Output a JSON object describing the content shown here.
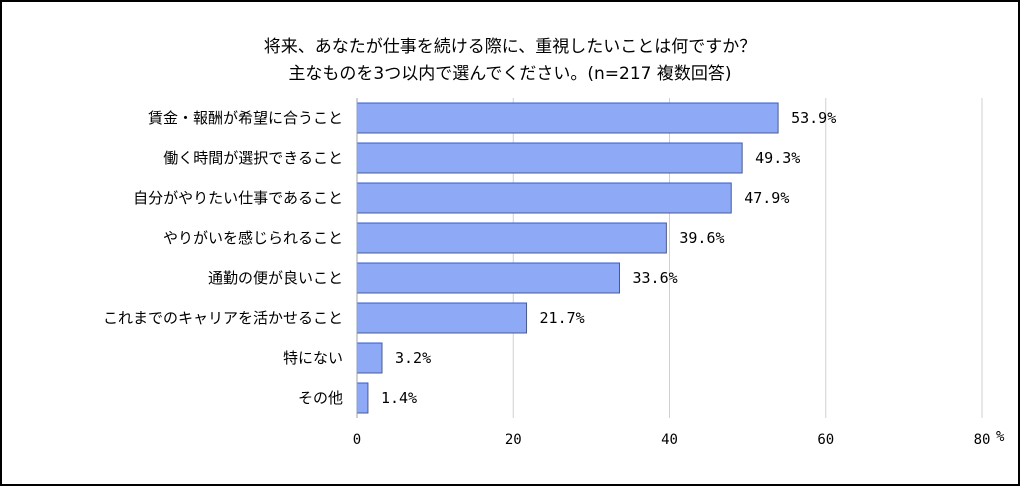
{
  "chart_data": {
    "type": "bar",
    "orientation": "horizontal",
    "title_line1": "将来、あなたが仕事を続ける際に、重視したいことは何ですか？",
    "title_line2": "主なものを3つ以内で選んでください。(n=217 複数回答)",
    "categories": [
      "賃金・報酬が希望に合うこと",
      "働く時間が選択できること",
      "自分がやりたい仕事であること",
      "やりがいを感じられること",
      "通勤の便が良いこと",
      "これまでのキャリアを活かせること",
      "特にない",
      "その他"
    ],
    "values": [
      53.9,
      49.3,
      47.9,
      39.6,
      33.6,
      21.7,
      3.2,
      1.4
    ],
    "value_labels": [
      "53.9%",
      "49.3%",
      "47.9%",
      "39.6%",
      "33.6%",
      "21.7%",
      "3.2%",
      "1.4%"
    ],
    "xlim": [
      0,
      80
    ],
    "xticks": [
      "0",
      "20",
      "40",
      "60",
      "80"
    ],
    "xunit": "%",
    "grid": true,
    "bar_color": "#8eaaf7",
    "bar_edge_color": "#3c5ab4"
  }
}
